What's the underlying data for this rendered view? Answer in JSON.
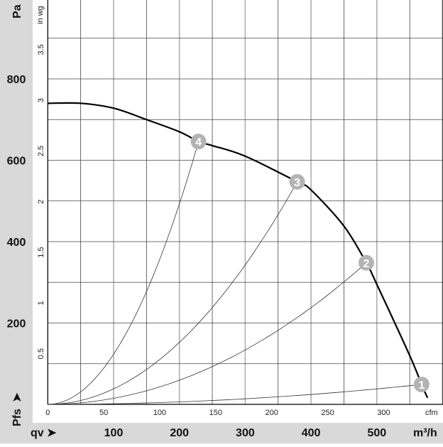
{
  "chart_data": {
    "type": "line",
    "x_unit_primary": "m³/h",
    "x_unit_secondary": "cfm",
    "y_unit_primary": "Pa",
    "y_unit_secondary": "in wg",
    "xlabel": "qv",
    "ylabel": "Pfs",
    "xlim": [
      0,
      600
    ],
    "ylim": [
      0,
      994
    ],
    "grid": true,
    "x_ticks_primary": [
      "100",
      "200",
      "300",
      "400",
      "500"
    ],
    "x_ticks_secondary": [
      "0",
      "50",
      "100",
      "150",
      "200",
      "250",
      "300"
    ],
    "y_ticks_primary": [
      "200",
      "400",
      "600",
      "800"
    ],
    "y_ticks_secondary": [
      "0.5",
      "1",
      "1.5",
      "2",
      "2.5",
      "3",
      "3.5"
    ],
    "series": [
      {
        "role": "fan-curve",
        "x": [
          0,
          50,
          100,
          150,
          200,
          229,
          250,
          300,
          379,
          400,
          450,
          484,
          500,
          550,
          568,
          577
        ],
        "y": [
          740,
          740,
          728,
          700,
          670,
          646,
          636,
          610,
          547,
          527,
          438,
          348,
          295,
          120,
          49,
          16
        ]
      }
    ],
    "operating_points": [
      {
        "label": "1",
        "x": 568,
        "y": 49
      },
      {
        "label": "2",
        "x": 484,
        "y": 348
      },
      {
        "label": "3",
        "x": 379,
        "y": 547
      },
      {
        "label": "4",
        "x": 229,
        "y": 646
      }
    ],
    "colors": {
      "band": "#d9d9d9",
      "grid": "#444444",
      "grid_major": "#aaaaaa",
      "marker": "#b3b3b3",
      "curve": "#000000"
    }
  }
}
